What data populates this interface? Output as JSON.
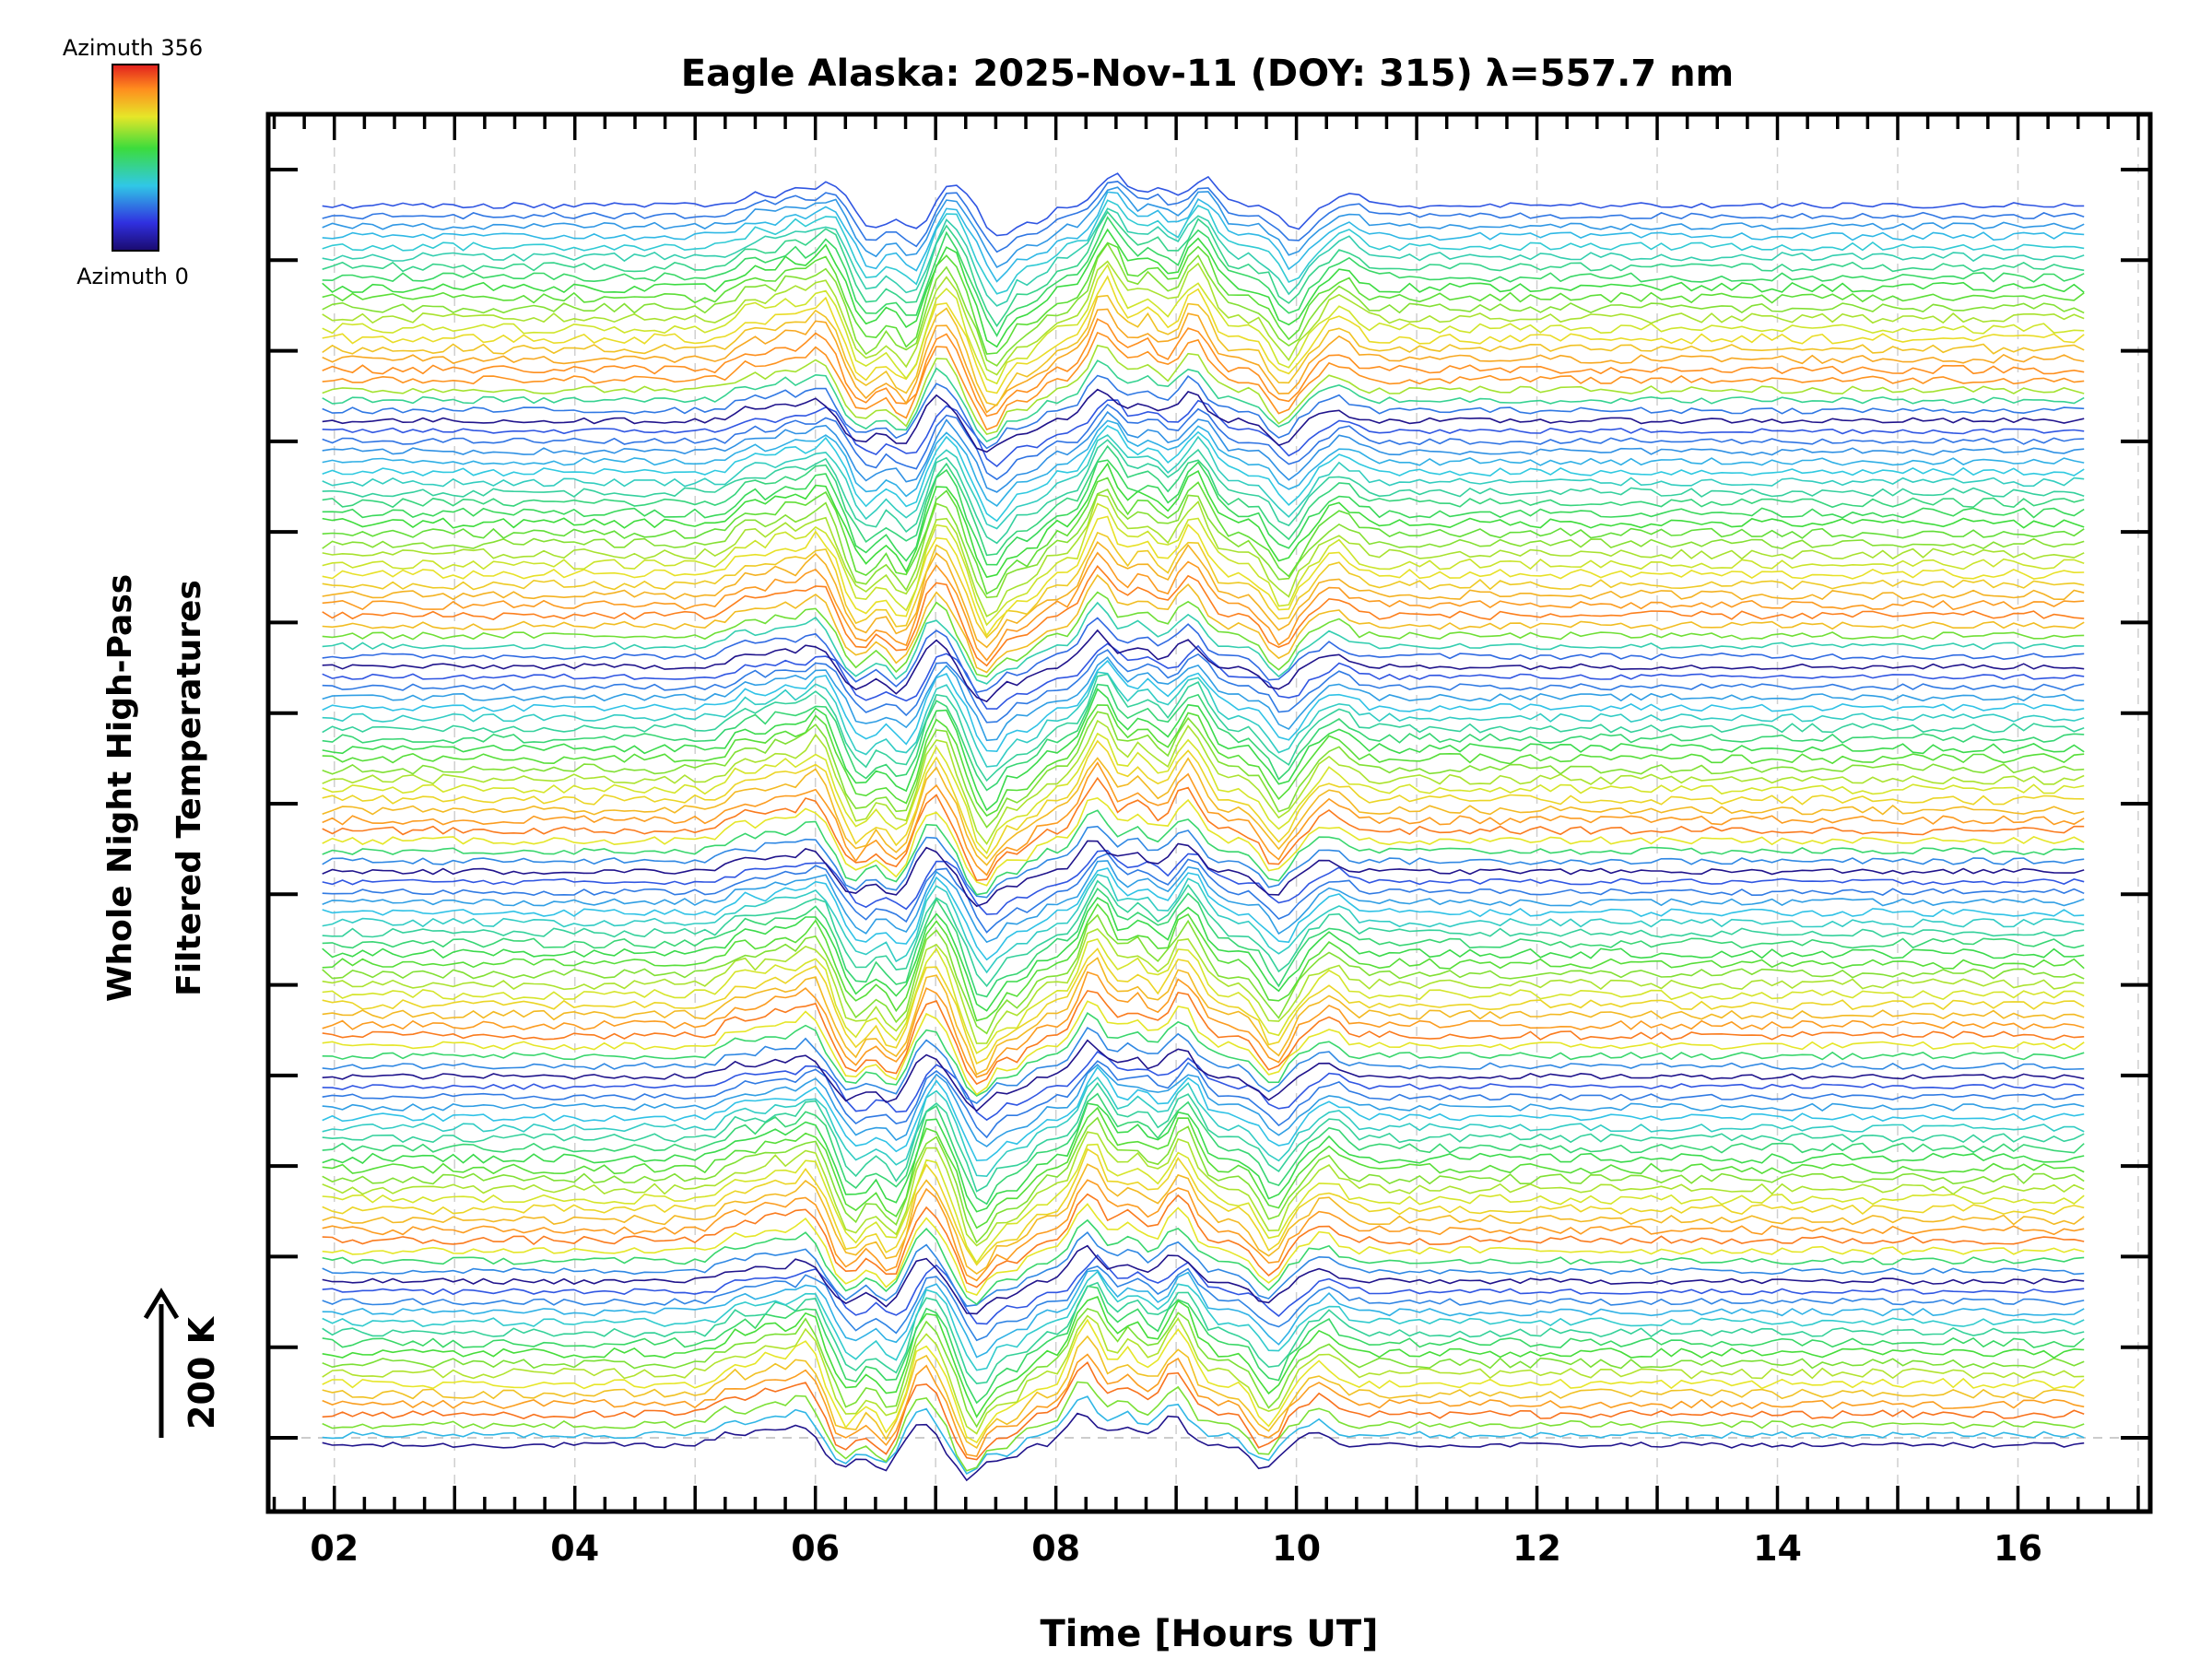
{
  "chart_data": {
    "type": "line",
    "title": "Eagle Alaska: 2025-Nov-11 (DOY: 315) λ=557.7 nm",
    "xlabel": "Time [Hours UT]",
    "ylabel_lines": [
      "Whole Night High-Pass",
      "Filtered Temperatures"
    ],
    "scale_label": "200 K",
    "colorbar": {
      "top_label": "Azimuth 356",
      "bottom_label": "Azimuth 0",
      "colormap": "rainbow"
    },
    "xlim": [
      1.45,
      17.1
    ],
    "x_tick_labels": [
      "02",
      "04",
      "06",
      "08",
      "10",
      "12",
      "14",
      "16"
    ],
    "x_tick_values": [
      2,
      4,
      6,
      8,
      10,
      12,
      14,
      16
    ],
    "y_major_tick_count": 15,
    "grid": true,
    "x_range_data": [
      1.9,
      16.55
    ],
    "series_note": "stacked high-pass filtered temperature traces, one per azimuth, offset vertically; colour encodes azimuth 0–356",
    "groups": [
      {
        "azimuth_start": 0,
        "azimuth_end": 60,
        "trace_count": 16
      },
      {
        "azimuth_start": 60,
        "azimuth_end": 120,
        "trace_count": 20
      },
      {
        "azimuth_start": 120,
        "azimuth_end": 180,
        "trace_count": 20
      },
      {
        "azimuth_start": 180,
        "azimuth_end": 240,
        "trace_count": 20
      },
      {
        "azimuth_start": 240,
        "azimuth_end": 300,
        "trace_count": 24
      },
      {
        "azimuth_start": 300,
        "azimuth_end": 356,
        "trace_count": 22
      }
    ],
    "features_hours_ut": [
      {
        "x": 5.4,
        "amp": 0.45
      },
      {
        "x": 5.7,
        "amp": 0.6
      },
      {
        "x": 6.0,
        "amp": 0.85
      },
      {
        "x": 6.35,
        "amp": -0.9
      },
      {
        "x": 6.7,
        "amp": -1.0
      },
      {
        "x": 7.0,
        "amp": 0.95
      },
      {
        "x": 7.4,
        "amp": -1.3
      },
      {
        "x": 7.7,
        "amp": -0.6
      },
      {
        "x": 8.35,
        "amp": 1.3
      },
      {
        "x": 8.7,
        "amp": 0.7
      },
      {
        "x": 9.1,
        "amp": 1.1
      },
      {
        "x": 9.85,
        "amp": -0.9
      },
      {
        "x": 10.3,
        "amp": 0.45
      }
    ]
  }
}
